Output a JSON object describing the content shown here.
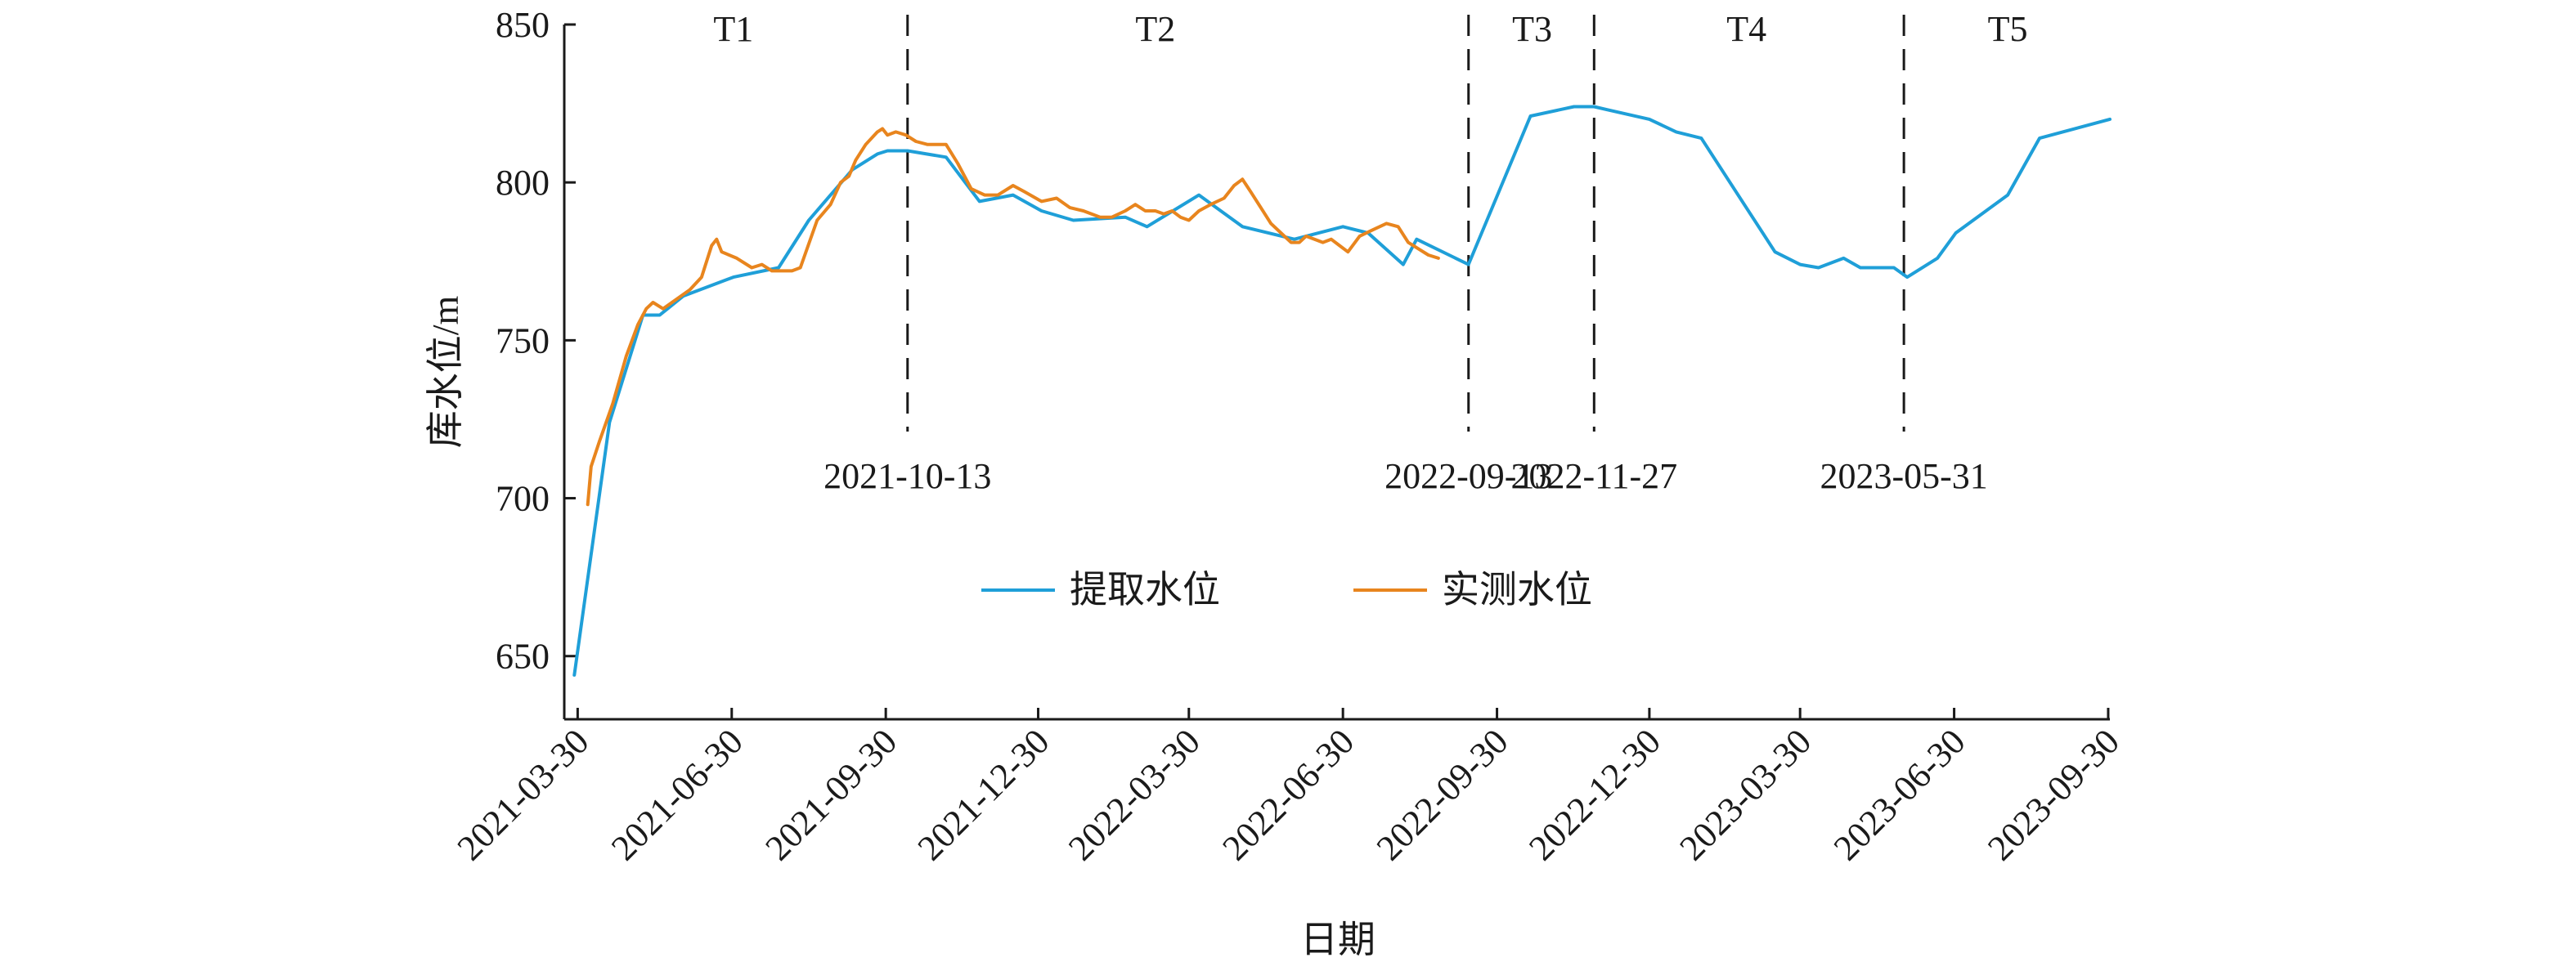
{
  "chart_data": {
    "type": "line",
    "xlabel": "日期",
    "ylabel": "库水位/m",
    "ylim": [
      630,
      850
    ],
    "yticks": [
      650,
      700,
      750,
      800,
      850
    ],
    "xlim": [
      "2021-03-22",
      "2023-10-01"
    ],
    "xticks": [
      "2021-03-30",
      "2021-06-30",
      "2021-09-30",
      "2021-12-30",
      "2022-03-30",
      "2022-06-30",
      "2022-09-30",
      "2022-12-30",
      "2023-03-30",
      "2023-06-30",
      "2023-09-30"
    ],
    "grid": false,
    "legend_position": "center",
    "series": [
      {
        "name": "提取水位",
        "color": "#1f9fd8",
        "points": [
          [
            "2021-03-28",
            644
          ],
          [
            "2021-04-18",
            724
          ],
          [
            "2021-05-08",
            758
          ],
          [
            "2021-05-18",
            758
          ],
          [
            "2021-06-01",
            764
          ],
          [
            "2021-07-01",
            770
          ],
          [
            "2021-07-28",
            773
          ],
          [
            "2021-08-15",
            788
          ],
          [
            "2021-09-10",
            804
          ],
          [
            "2021-09-25",
            809
          ],
          [
            "2021-10-01",
            810
          ],
          [
            "2021-10-13",
            810
          ],
          [
            "2021-11-05",
            808
          ],
          [
            "2021-11-25",
            794
          ],
          [
            "2021-12-15",
            796
          ],
          [
            "2022-01-01",
            791
          ],
          [
            "2022-01-20",
            788
          ],
          [
            "2022-02-20",
            789
          ],
          [
            "2022-03-05",
            786
          ],
          [
            "2022-04-05",
            796
          ],
          [
            "2022-05-01",
            786
          ],
          [
            "2022-06-01",
            782
          ],
          [
            "2022-06-30",
            786
          ],
          [
            "2022-07-15",
            784
          ],
          [
            "2022-08-05",
            774
          ],
          [
            "2022-08-13",
            782
          ],
          [
            "2022-09-13",
            774
          ],
          [
            "2022-10-20",
            821
          ],
          [
            "2022-11-15",
            824
          ],
          [
            "2022-11-27",
            824
          ],
          [
            "2022-12-05",
            823
          ],
          [
            "2022-12-30",
            820
          ],
          [
            "2023-01-15",
            816
          ],
          [
            "2023-01-30",
            814
          ],
          [
            "2023-03-15",
            778
          ],
          [
            "2023-03-30",
            774
          ],
          [
            "2023-04-10",
            773
          ],
          [
            "2023-04-25",
            776
          ],
          [
            "2023-05-05",
            773
          ],
          [
            "2023-05-25",
            773
          ],
          [
            "2023-06-02",
            770
          ],
          [
            "2023-06-20",
            776
          ],
          [
            "2023-07-01",
            784
          ],
          [
            "2023-08-01",
            796
          ],
          [
            "2023-08-20",
            814
          ],
          [
            "2023-10-01",
            820
          ]
        ]
      },
      {
        "name": "实测水位",
        "color": "#e8851e",
        "points": [
          [
            "2021-04-05",
            698
          ],
          [
            "2021-04-07",
            710
          ],
          [
            "2021-04-12",
            718
          ],
          [
            "2021-04-20",
            730
          ],
          [
            "2021-04-28",
            745
          ],
          [
            "2021-05-05",
            755
          ],
          [
            "2021-05-10",
            760
          ],
          [
            "2021-05-14",
            762
          ],
          [
            "2021-05-20",
            760
          ],
          [
            "2021-05-28",
            763
          ],
          [
            "2021-06-05",
            766
          ],
          [
            "2021-06-12",
            770
          ],
          [
            "2021-06-18",
            780
          ],
          [
            "2021-06-21",
            782
          ],
          [
            "2021-06-24",
            778
          ],
          [
            "2021-07-03",
            776
          ],
          [
            "2021-07-12",
            773
          ],
          [
            "2021-07-18",
            774
          ],
          [
            "2021-07-24",
            772
          ],
          [
            "2021-08-05",
            772
          ],
          [
            "2021-08-10",
            773
          ],
          [
            "2021-08-20",
            788
          ],
          [
            "2021-08-28",
            793
          ],
          [
            "2021-09-03",
            800
          ],
          [
            "2021-09-08",
            802
          ],
          [
            "2021-09-12",
            807
          ],
          [
            "2021-09-18",
            812
          ],
          [
            "2021-09-25",
            816
          ],
          [
            "2021-09-28",
            817
          ],
          [
            "2021-10-01",
            815
          ],
          [
            "2021-10-06",
            816
          ],
          [
            "2021-10-12",
            815
          ],
          [
            "2021-10-18",
            813
          ],
          [
            "2021-10-25",
            812
          ],
          [
            "2021-11-05",
            812
          ],
          [
            "2021-11-12",
            806
          ],
          [
            "2021-11-20",
            798
          ],
          [
            "2021-11-28",
            796
          ],
          [
            "2021-12-06",
            796
          ],
          [
            "2021-12-15",
            799
          ],
          [
            "2021-12-22",
            797
          ],
          [
            "2022-01-01",
            794
          ],
          [
            "2022-01-10",
            795
          ],
          [
            "2022-01-18",
            792
          ],
          [
            "2022-01-26",
            791
          ],
          [
            "2022-02-05",
            789
          ],
          [
            "2022-02-12",
            789
          ],
          [
            "2022-02-20",
            791
          ],
          [
            "2022-02-26",
            793
          ],
          [
            "2022-03-04",
            791
          ],
          [
            "2022-03-10",
            791
          ],
          [
            "2022-03-15",
            790
          ],
          [
            "2022-03-20",
            791
          ],
          [
            "2022-03-25",
            789
          ],
          [
            "2022-03-30",
            788
          ],
          [
            "2022-04-05",
            791
          ],
          [
            "2022-04-12",
            793
          ],
          [
            "2022-04-20",
            795
          ],
          [
            "2022-04-26",
            799
          ],
          [
            "2022-05-01",
            801
          ],
          [
            "2022-05-06",
            797
          ],
          [
            "2022-05-12",
            792
          ],
          [
            "2022-05-18",
            787
          ],
          [
            "2022-05-24",
            784
          ],
          [
            "2022-05-30",
            781
          ],
          [
            "2022-06-04",
            781
          ],
          [
            "2022-06-08",
            783
          ],
          [
            "2022-06-13",
            782
          ],
          [
            "2022-06-18",
            781
          ],
          [
            "2022-06-23",
            782
          ],
          [
            "2022-06-28",
            780
          ],
          [
            "2022-07-03",
            778
          ],
          [
            "2022-07-10",
            783
          ],
          [
            "2022-07-18",
            785
          ],
          [
            "2022-07-26",
            787
          ],
          [
            "2022-08-02",
            786
          ],
          [
            "2022-08-08",
            781
          ],
          [
            "2022-08-14",
            779
          ],
          [
            "2022-08-20",
            777
          ],
          [
            "2022-08-26",
            776
          ]
        ]
      }
    ],
    "period_markers": [
      {
        "date": "2021-10-13",
        "label": "2021-10-13"
      },
      {
        "date": "2022-09-13",
        "label": "2022-09-13"
      },
      {
        "date": "2022-11-27",
        "label": "2022-11-27"
      },
      {
        "date": "2023-05-31",
        "label": "2023-05-31"
      }
    ],
    "periods": [
      {
        "label": "T1",
        "center_date": "2021-07-01"
      },
      {
        "label": "T2",
        "center_date": "2022-03-10"
      },
      {
        "label": "T3",
        "center_date": "2022-10-21"
      },
      {
        "label": "T4",
        "center_date": "2023-02-26"
      },
      {
        "label": "T5",
        "center_date": "2023-08-01"
      }
    ]
  }
}
